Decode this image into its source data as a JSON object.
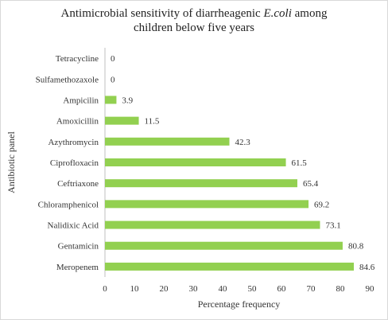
{
  "chart_data": {
    "type": "bar",
    "orientation": "horizontal",
    "title_line1_prefix": "Antimicrobial sensitivity of diarrheagenic ",
    "title_line1_italic": "E.coli",
    "title_line1_suffix": " among",
    "title_line2": "children below five years",
    "xlabel": "Percentage frequency",
    "ylabel": "Antibiotic panel",
    "xlim": [
      0,
      90
    ],
    "xticks": [
      "0",
      "10",
      "20",
      "30",
      "40",
      "50",
      "60",
      "70",
      "80",
      "90"
    ],
    "grid": false,
    "legend": "none",
    "categories": [
      "Tetracycline",
      "Sulfamethozaxole",
      "Ampicilin",
      "Amoxicillin",
      "Azythromycin",
      "Ciprofloxacin",
      "Ceftriaxone",
      "Chloramphenicol",
      "Nalidixic Acid",
      "Gentamicin",
      "Meropenem"
    ],
    "values": [
      0,
      0,
      3.9,
      11.5,
      42.3,
      61.5,
      65.4,
      69.2,
      73.1,
      80.8,
      84.6
    ],
    "value_labels": [
      "0",
      "0",
      "3.9",
      "11.5",
      "42.3",
      "61.5",
      "65.4",
      "69.2",
      "73.1",
      "80.8",
      "84.6"
    ],
    "bar_color": "#92d050"
  }
}
